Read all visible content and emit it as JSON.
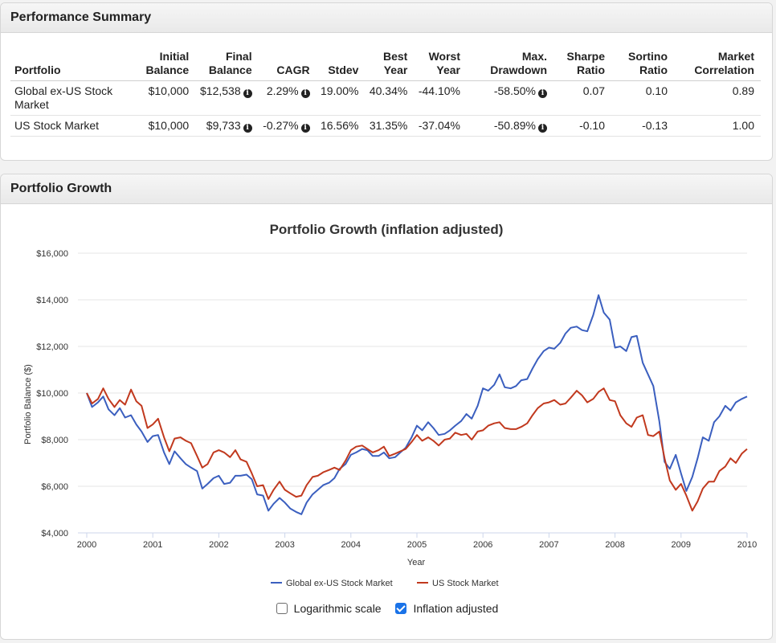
{
  "summary": {
    "title": "Performance Summary",
    "headers": [
      {
        "l1": "",
        "l2": "Portfolio"
      },
      {
        "l1": "Initial",
        "l2": "Balance"
      },
      {
        "l1": "Final",
        "l2": "Balance"
      },
      {
        "l1": "",
        "l2": "CAGR"
      },
      {
        "l1": "",
        "l2": "Stdev"
      },
      {
        "l1": "Best",
        "l2": "Year"
      },
      {
        "l1": "Worst",
        "l2": "Year"
      },
      {
        "l1": "Max.",
        "l2": "Drawdown"
      },
      {
        "l1": "Sharpe",
        "l2": "Ratio"
      },
      {
        "l1": "Sortino",
        "l2": "Ratio"
      },
      {
        "l1": "Market",
        "l2": "Correlation"
      }
    ],
    "rows": [
      {
        "portfolio": "Global ex-US Stock Market",
        "initial": "$10,000",
        "final": "$12,538",
        "cagr": "2.29%",
        "stdev": "19.00%",
        "best": "40.34%",
        "worst": "-44.10%",
        "drawdown": "-58.50%",
        "sharpe": "0.07",
        "sortino": "0.10",
        "correlation": "0.89"
      },
      {
        "portfolio": "US Stock Market",
        "initial": "$10,000",
        "final": "$9,733",
        "cagr": "-0.27%",
        "stdev": "16.56%",
        "best": "31.35%",
        "worst": "-37.04%",
        "drawdown": "-50.89%",
        "sharpe": "-0.10",
        "sortino": "-0.13",
        "correlation": "1.00"
      }
    ],
    "info_icon": "info-circle-icon"
  },
  "growth": {
    "title": "Portfolio Growth",
    "logarithmic_label": "Logarithmic scale",
    "logarithmic_checked": false,
    "inflation_label": "Inflation adjusted",
    "inflation_checked": true
  },
  "chart_data": {
    "type": "line",
    "title": "Portfolio Growth (inflation adjusted)",
    "xlabel": "Year",
    "ylabel": "Portfolio Balance ($)",
    "xlim": [
      2000,
      2010
    ],
    "ylim": [
      4000,
      16000
    ],
    "yticks": [
      4000,
      6000,
      8000,
      10000,
      12000,
      14000,
      16000
    ],
    "ytick_labels": [
      "$4,000",
      "$6,000",
      "$8,000",
      "$10,000",
      "$12,000",
      "$14,000",
      "$16,000"
    ],
    "xticks": [
      2000,
      2001,
      2002,
      2003,
      2004,
      2005,
      2006,
      2007,
      2008,
      2009,
      2010
    ],
    "xtick_labels": [
      "2000",
      "2001",
      "2002",
      "2003",
      "2004",
      "2005",
      "2006",
      "2007",
      "2008",
      "2009",
      "2010"
    ],
    "legend_position": "bottom-center",
    "series": [
      {
        "name": "Global ex-US Stock Market",
        "color": "#3b5fbf",
        "points": [
          [
            2000.0,
            10000
          ],
          [
            2000.08,
            9400
          ],
          [
            2000.17,
            9600
          ],
          [
            2000.25,
            9850
          ],
          [
            2000.33,
            9300
          ],
          [
            2000.42,
            9050
          ],
          [
            2000.5,
            9350
          ],
          [
            2000.58,
            8950
          ],
          [
            2000.67,
            9050
          ],
          [
            2000.75,
            8650
          ],
          [
            2000.83,
            8350
          ],
          [
            2000.92,
            7900
          ],
          [
            2001.0,
            8150
          ],
          [
            2001.08,
            8200
          ],
          [
            2001.17,
            7450
          ],
          [
            2001.25,
            6950
          ],
          [
            2001.33,
            7500
          ],
          [
            2001.42,
            7200
          ],
          [
            2001.5,
            6950
          ],
          [
            2001.58,
            6800
          ],
          [
            2001.67,
            6650
          ],
          [
            2001.75,
            5900
          ],
          [
            2001.83,
            6100
          ],
          [
            2001.92,
            6350
          ],
          [
            2002.0,
            6450
          ],
          [
            2002.08,
            6100
          ],
          [
            2002.17,
            6150
          ],
          [
            2002.25,
            6450
          ],
          [
            2002.33,
            6450
          ],
          [
            2002.42,
            6500
          ],
          [
            2002.5,
            6300
          ],
          [
            2002.58,
            5650
          ],
          [
            2002.67,
            5600
          ],
          [
            2002.75,
            4950
          ],
          [
            2002.83,
            5250
          ],
          [
            2002.92,
            5500
          ],
          [
            2003.0,
            5300
          ],
          [
            2003.08,
            5050
          ],
          [
            2003.17,
            4900
          ],
          [
            2003.25,
            4800
          ],
          [
            2003.33,
            5300
          ],
          [
            2003.42,
            5650
          ],
          [
            2003.5,
            5850
          ],
          [
            2003.58,
            6050
          ],
          [
            2003.67,
            6150
          ],
          [
            2003.75,
            6350
          ],
          [
            2003.83,
            6750
          ],
          [
            2003.92,
            6950
          ],
          [
            2004.0,
            7350
          ],
          [
            2004.08,
            7450
          ],
          [
            2004.17,
            7600
          ],
          [
            2004.25,
            7550
          ],
          [
            2004.33,
            7300
          ],
          [
            2004.42,
            7300
          ],
          [
            2004.5,
            7450
          ],
          [
            2004.58,
            7200
          ],
          [
            2004.67,
            7250
          ],
          [
            2004.75,
            7450
          ],
          [
            2004.83,
            7650
          ],
          [
            2004.92,
            8100
          ],
          [
            2005.0,
            8600
          ],
          [
            2005.08,
            8400
          ],
          [
            2005.17,
            8750
          ],
          [
            2005.25,
            8500
          ],
          [
            2005.33,
            8200
          ],
          [
            2005.42,
            8250
          ],
          [
            2005.5,
            8400
          ],
          [
            2005.58,
            8600
          ],
          [
            2005.67,
            8800
          ],
          [
            2005.75,
            9100
          ],
          [
            2005.83,
            8900
          ],
          [
            2005.92,
            9450
          ],
          [
            2006.0,
            10200
          ],
          [
            2006.08,
            10100
          ],
          [
            2006.17,
            10350
          ],
          [
            2006.25,
            10800
          ],
          [
            2006.33,
            10250
          ],
          [
            2006.42,
            10200
          ],
          [
            2006.5,
            10300
          ],
          [
            2006.58,
            10550
          ],
          [
            2006.67,
            10600
          ],
          [
            2006.75,
            11050
          ],
          [
            2006.83,
            11450
          ],
          [
            2006.92,
            11800
          ],
          [
            2007.0,
            11950
          ],
          [
            2007.08,
            11900
          ],
          [
            2007.17,
            12150
          ],
          [
            2007.25,
            12550
          ],
          [
            2007.33,
            12800
          ],
          [
            2007.42,
            12850
          ],
          [
            2007.5,
            12700
          ],
          [
            2007.58,
            12650
          ],
          [
            2007.67,
            13350
          ],
          [
            2007.75,
            14200
          ],
          [
            2007.83,
            13450
          ],
          [
            2007.92,
            13150
          ],
          [
            2008.0,
            11950
          ],
          [
            2008.08,
            12000
          ],
          [
            2008.17,
            11800
          ],
          [
            2008.25,
            12400
          ],
          [
            2008.33,
            12450
          ],
          [
            2008.42,
            11300
          ],
          [
            2008.5,
            10800
          ],
          [
            2008.58,
            10300
          ],
          [
            2008.67,
            8800
          ],
          [
            2008.75,
            7050
          ],
          [
            2008.83,
            6750
          ],
          [
            2008.92,
            7350
          ],
          [
            2009.0,
            6550
          ],
          [
            2009.08,
            5800
          ],
          [
            2009.17,
            6400
          ],
          [
            2009.25,
            7200
          ],
          [
            2009.33,
            8100
          ],
          [
            2009.42,
            7950
          ],
          [
            2009.5,
            8750
          ],
          [
            2009.58,
            9000
          ],
          [
            2009.67,
            9450
          ],
          [
            2009.75,
            9250
          ],
          [
            2009.83,
            9600
          ],
          [
            2009.92,
            9750
          ],
          [
            2010.0,
            9850
          ]
        ]
      },
      {
        "name": "US Stock Market",
        "color": "#c1391e",
        "points": [
          [
            2000.0,
            10000
          ],
          [
            2000.08,
            9550
          ],
          [
            2000.17,
            9750
          ],
          [
            2000.25,
            10200
          ],
          [
            2000.33,
            9750
          ],
          [
            2000.42,
            9400
          ],
          [
            2000.5,
            9700
          ],
          [
            2000.58,
            9500
          ],
          [
            2000.67,
            10150
          ],
          [
            2000.75,
            9650
          ],
          [
            2000.83,
            9450
          ],
          [
            2000.92,
            8500
          ],
          [
            2001.0,
            8650
          ],
          [
            2001.08,
            8900
          ],
          [
            2001.17,
            8100
          ],
          [
            2001.25,
            7500
          ],
          [
            2001.33,
            8050
          ],
          [
            2001.42,
            8100
          ],
          [
            2001.5,
            7950
          ],
          [
            2001.58,
            7850
          ],
          [
            2001.67,
            7300
          ],
          [
            2001.75,
            6800
          ],
          [
            2001.83,
            6950
          ],
          [
            2001.92,
            7450
          ],
          [
            2002.0,
            7550
          ],
          [
            2002.08,
            7450
          ],
          [
            2002.17,
            7250
          ],
          [
            2002.25,
            7550
          ],
          [
            2002.33,
            7150
          ],
          [
            2002.42,
            7050
          ],
          [
            2002.5,
            6550
          ],
          [
            2002.58,
            6000
          ],
          [
            2002.67,
            6050
          ],
          [
            2002.75,
            5450
          ],
          [
            2002.83,
            5850
          ],
          [
            2002.92,
            6200
          ],
          [
            2003.0,
            5850
          ],
          [
            2003.08,
            5700
          ],
          [
            2003.17,
            5550
          ],
          [
            2003.25,
            5600
          ],
          [
            2003.33,
            6050
          ],
          [
            2003.42,
            6400
          ],
          [
            2003.5,
            6450
          ],
          [
            2003.58,
            6600
          ],
          [
            2003.67,
            6700
          ],
          [
            2003.75,
            6800
          ],
          [
            2003.83,
            6700
          ],
          [
            2003.92,
            7100
          ],
          [
            2004.0,
            7550
          ],
          [
            2004.08,
            7700
          ],
          [
            2004.17,
            7750
          ],
          [
            2004.25,
            7600
          ],
          [
            2004.33,
            7450
          ],
          [
            2004.42,
            7550
          ],
          [
            2004.5,
            7700
          ],
          [
            2004.58,
            7300
          ],
          [
            2004.67,
            7400
          ],
          [
            2004.75,
            7500
          ],
          [
            2004.83,
            7600
          ],
          [
            2004.92,
            7900
          ],
          [
            2005.0,
            8200
          ],
          [
            2005.08,
            7950
          ],
          [
            2005.17,
            8100
          ],
          [
            2005.25,
            7950
          ],
          [
            2005.33,
            7750
          ],
          [
            2005.42,
            8000
          ],
          [
            2005.5,
            8050
          ],
          [
            2005.58,
            8300
          ],
          [
            2005.67,
            8200
          ],
          [
            2005.75,
            8250
          ],
          [
            2005.83,
            8000
          ],
          [
            2005.92,
            8350
          ],
          [
            2006.0,
            8400
          ],
          [
            2006.08,
            8600
          ],
          [
            2006.17,
            8700
          ],
          [
            2006.25,
            8750
          ],
          [
            2006.33,
            8500
          ],
          [
            2006.42,
            8450
          ],
          [
            2006.5,
            8450
          ],
          [
            2006.58,
            8550
          ],
          [
            2006.67,
            8700
          ],
          [
            2006.75,
            9050
          ],
          [
            2006.83,
            9350
          ],
          [
            2006.92,
            9550
          ],
          [
            2007.0,
            9600
          ],
          [
            2007.08,
            9700
          ],
          [
            2007.17,
            9500
          ],
          [
            2007.25,
            9550
          ],
          [
            2007.33,
            9800
          ],
          [
            2007.42,
            10100
          ],
          [
            2007.5,
            9900
          ],
          [
            2007.58,
            9600
          ],
          [
            2007.67,
            9750
          ],
          [
            2007.75,
            10050
          ],
          [
            2007.83,
            10200
          ],
          [
            2007.92,
            9700
          ],
          [
            2008.0,
            9650
          ],
          [
            2008.08,
            9050
          ],
          [
            2008.17,
            8700
          ],
          [
            2008.25,
            8550
          ],
          [
            2008.33,
            8950
          ],
          [
            2008.42,
            9050
          ],
          [
            2008.5,
            8200
          ],
          [
            2008.58,
            8150
          ],
          [
            2008.67,
            8350
          ],
          [
            2008.75,
            7200
          ],
          [
            2008.83,
            6250
          ],
          [
            2008.92,
            5850
          ],
          [
            2009.0,
            6100
          ],
          [
            2009.08,
            5600
          ],
          [
            2009.17,
            4950
          ],
          [
            2009.25,
            5350
          ],
          [
            2009.33,
            5900
          ],
          [
            2009.42,
            6200
          ],
          [
            2009.5,
            6200
          ],
          [
            2009.58,
            6650
          ],
          [
            2009.67,
            6850
          ],
          [
            2009.75,
            7200
          ],
          [
            2009.83,
            7000
          ],
          [
            2009.92,
            7400
          ],
          [
            2010.0,
            7600
          ]
        ]
      }
    ]
  }
}
